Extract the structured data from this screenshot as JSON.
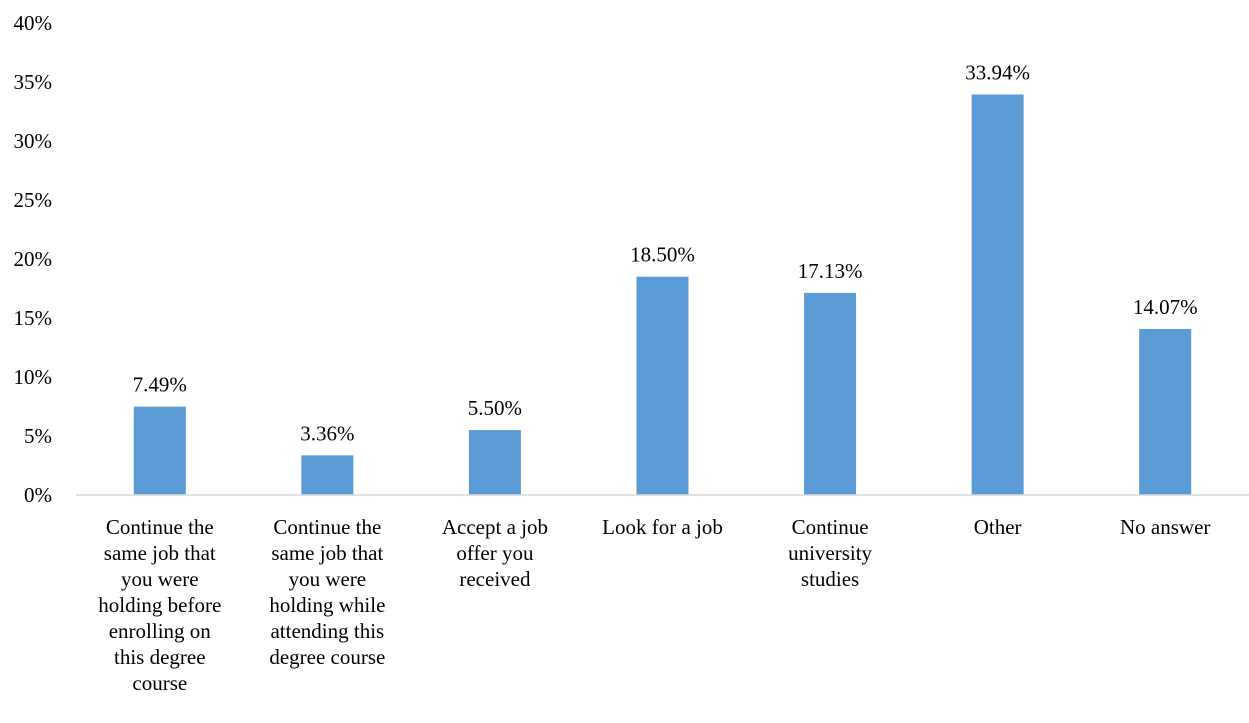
{
  "chart_data": {
    "type": "bar",
    "title": "",
    "xlabel": "",
    "ylabel": "",
    "ylim": [
      0,
      40
    ],
    "y_ticks": [
      "0%",
      "5%",
      "10%",
      "15%",
      "20%",
      "25%",
      "30%",
      "35%",
      "40%"
    ],
    "y_tick_values": [
      0,
      5,
      10,
      15,
      20,
      25,
      30,
      35,
      40
    ],
    "grid": false,
    "legend": "none",
    "bar_color": "#5B9BD5",
    "categories": [
      [
        "Continue the",
        "same job that",
        "you were",
        "holding before",
        "enrolling on",
        "this degree",
        "course"
      ],
      [
        "Continue the",
        "same job that",
        "you were",
        "holding while",
        "attending this",
        "degree course"
      ],
      [
        "Accept a job",
        "offer you",
        "received"
      ],
      [
        "Look for a job"
      ],
      [
        "Continue",
        "university",
        "studies"
      ],
      [
        "Other"
      ],
      [
        "No answer"
      ]
    ],
    "values": [
      7.49,
      3.36,
      5.5,
      18.5,
      17.13,
      33.94,
      14.07
    ],
    "data_labels": [
      "7.49%",
      "3.36%",
      "5.50%",
      "18.50%",
      "17.13%",
      "33.94%",
      "14.07%"
    ]
  }
}
